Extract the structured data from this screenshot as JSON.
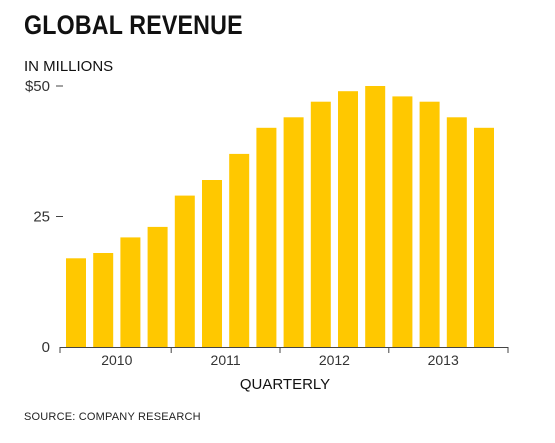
{
  "title": "GLOBAL REVENUE",
  "subtitle": "IN MILLIONS",
  "source": "SOURCE: COMPANY RESEARCH",
  "chart_data": {
    "type": "bar",
    "title": "GLOBAL REVENUE",
    "ylabel": "IN MILLIONS",
    "xlabel": "QUARTERLY",
    "categories": [
      "2010 Q1",
      "2010 Q2",
      "2010 Q3",
      "2010 Q4",
      "2011 Q1",
      "2011 Q2",
      "2011 Q3",
      "2011 Q4",
      "2012 Q1",
      "2012 Q2",
      "2012 Q3",
      "2012 Q4",
      "2013 Q1",
      "2013 Q2",
      "2013 Q3",
      "2013 Q4"
    ],
    "values": [
      17,
      18,
      21,
      23,
      29,
      32,
      37,
      42,
      44,
      47,
      49,
      50,
      48,
      47,
      44,
      42
    ],
    "ylim": [
      0,
      50
    ],
    "yticks": [
      {
        "value": 50,
        "label": "$50"
      },
      {
        "value": 25,
        "label": "25"
      },
      {
        "value": 0,
        "label": "0"
      }
    ],
    "xticks": [
      "2010",
      "2011",
      "2012",
      "2013"
    ],
    "grid": false,
    "legend": "none",
    "bar_color": "#FFC800",
    "axis_color": "#444444"
  }
}
